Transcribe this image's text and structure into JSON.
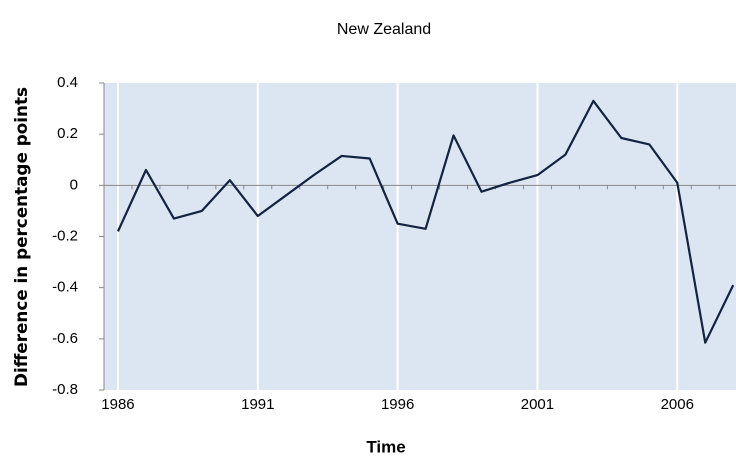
{
  "chart_data": {
    "type": "line",
    "title": "New Zealand",
    "xlabel": "Time",
    "ylabel": "Difference in percentage points",
    "x": [
      1986,
      1987,
      1988,
      1989,
      1990,
      1991,
      1992,
      1993,
      1994,
      1995,
      1996,
      1997,
      1998,
      1999,
      2000,
      2001,
      2002,
      2003,
      2004,
      2005,
      2006,
      2007,
      2008
    ],
    "series": [
      {
        "color": "#14233f",
        "values": [
          -0.18,
          0.06,
          -0.13,
          -0.1,
          0.02,
          -0.12,
          -0.04,
          0.04,
          0.115,
          0.105,
          -0.15,
          -0.17,
          0.195,
          -0.025,
          0.01,
          0.04,
          0.12,
          0.33,
          0.185,
          0.16,
          0.01,
          -0.615,
          -0.39
        ]
      }
    ],
    "xlim": [
      1985.5,
      2008.1
    ],
    "xticks": [
      1986,
      1991,
      1996,
      2001,
      2006
    ],
    "ylim": [
      -0.8,
      0.4
    ],
    "yticks": [
      -0.8,
      -0.6,
      -0.4,
      -0.2,
      0,
      0.2,
      0.4
    ],
    "grid": true,
    "background": "#dce6f2"
  }
}
